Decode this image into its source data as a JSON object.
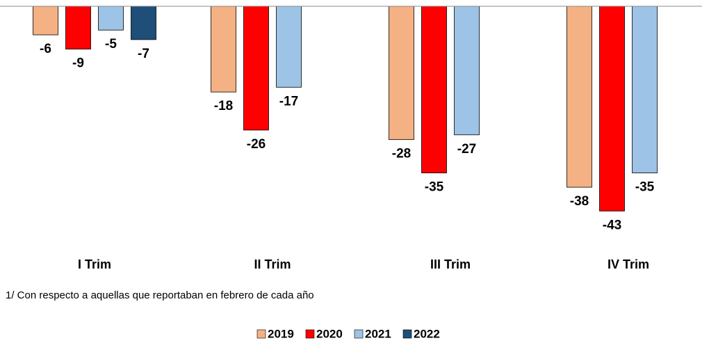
{
  "chart_data": {
    "type": "bar",
    "categories": [
      "I Trim",
      "II Trim",
      "III Trim",
      "IV Trim"
    ],
    "series": [
      {
        "name": "2019",
        "color": "#f4b183",
        "values": [
          -6,
          -18,
          -28,
          -38
        ]
      },
      {
        "name": "2020",
        "color": "#ff0000",
        "values": [
          -9,
          -26,
          -35,
          -43
        ]
      },
      {
        "name": "2021",
        "color": "#9dc3e6",
        "values": [
          -5,
          -17,
          -27,
          -35
        ]
      },
      {
        "name": "2022",
        "color": "#1f4e79",
        "values": [
          -7,
          null,
          null,
          null
        ]
      }
    ],
    "ylim": [
      -45,
      0
    ],
    "legend": "bottom",
    "note": "1/ Con respecto a aquellas que reportaban en febrero de cada año"
  }
}
